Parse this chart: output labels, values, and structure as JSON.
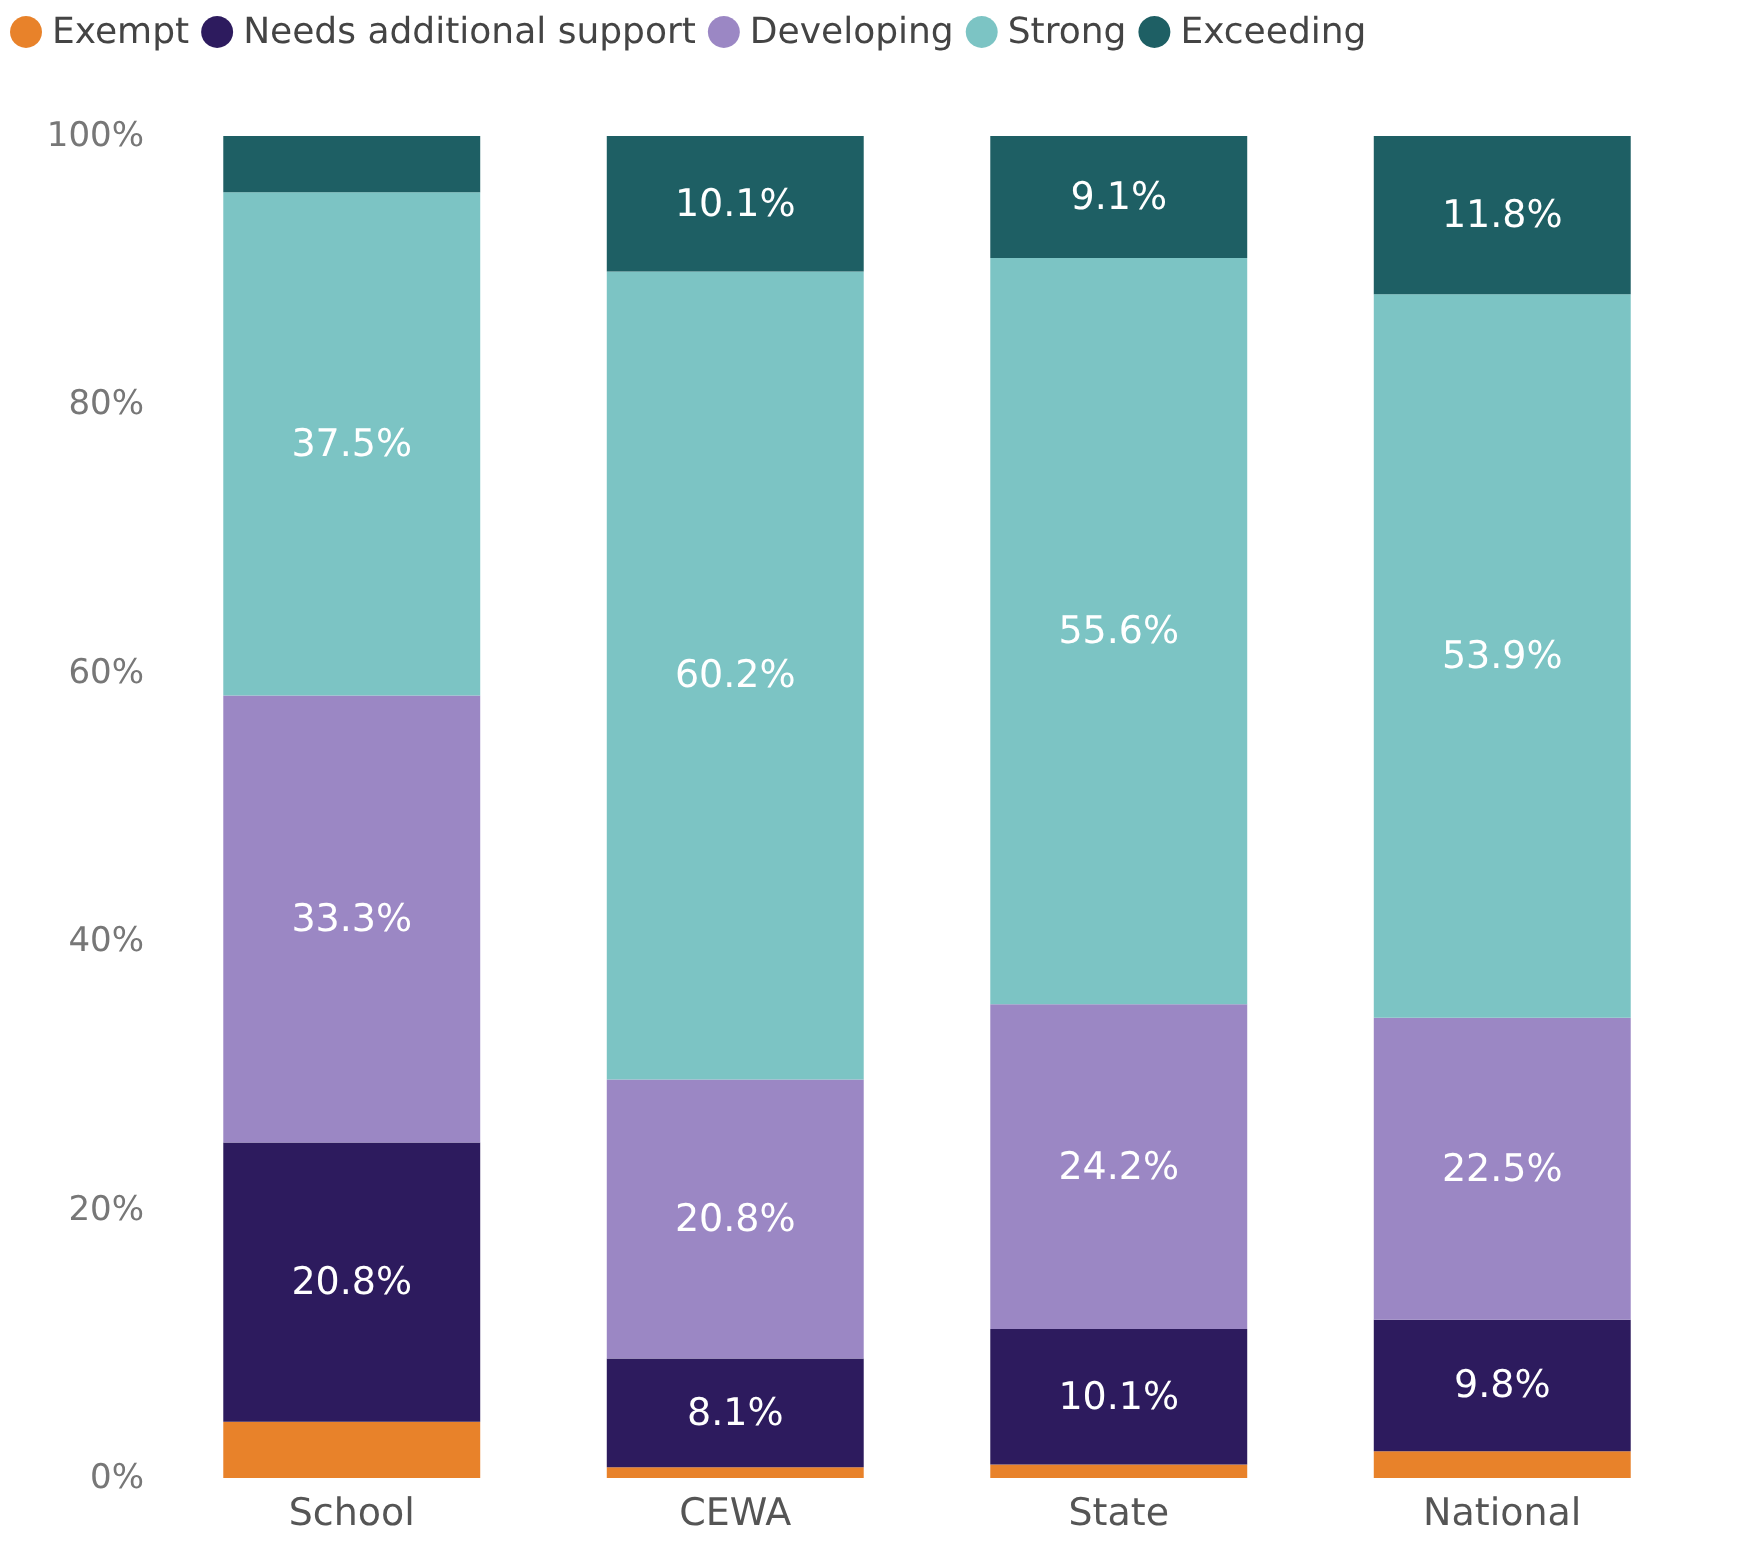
{
  "chart_data": {
    "type": "bar",
    "stacked": true,
    "categories": [
      "School",
      "CEWA",
      "State",
      "National"
    ],
    "series": [
      {
        "name": "Exempt",
        "color": "#e8822a",
        "values": [
          4.2,
          0.8,
          1.0,
          2.0
        ],
        "value_labels": [
          null,
          null,
          null,
          null
        ]
      },
      {
        "name": "Needs additional support",
        "color": "#2d1b5e",
        "values": [
          20.8,
          8.1,
          10.1,
          9.8
        ],
        "value_labels": [
          "20.8%",
          "8.1%",
          "10.1%",
          "9.8%"
        ]
      },
      {
        "name": "Developing",
        "color": "#9b87c4",
        "values": [
          33.3,
          20.8,
          24.2,
          22.5
        ],
        "value_labels": [
          "33.3%",
          "20.8%",
          "24.2%",
          "22.5%"
        ]
      },
      {
        "name": "Strong",
        "color": "#7cc4c4",
        "values": [
          37.5,
          60.2,
          55.6,
          53.9
        ],
        "value_labels": [
          "37.5%",
          "60.2%",
          "55.6%",
          "53.9%"
        ]
      },
      {
        "name": "Exceeding",
        "color": "#1e5f64",
        "values": [
          4.2,
          10.1,
          9.1,
          11.8
        ],
        "value_labels": [
          null,
          "10.1%",
          "9.1%",
          "11.8%"
        ]
      }
    ],
    "ylim": [
      0,
      100
    ],
    "yticks": [
      {
        "value": 0,
        "label": "0%"
      },
      {
        "value": 20,
        "label": "20%"
      },
      {
        "value": 40,
        "label": "40%"
      },
      {
        "value": 60,
        "label": "60%"
      },
      {
        "value": 80,
        "label": "80%"
      },
      {
        "value": 100,
        "label": "100%"
      }
    ],
    "grid": false,
    "legend": "top left"
  }
}
